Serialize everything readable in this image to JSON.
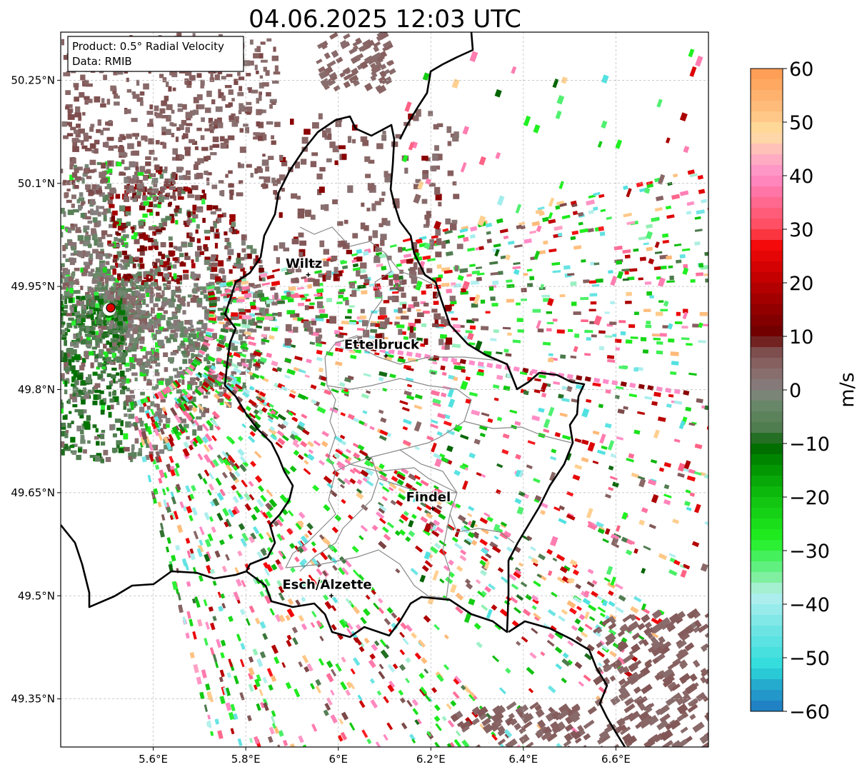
{
  "title": "04.06.2025 12:03 UTC",
  "info_box": {
    "product": "Product: 0.5° Radial Velocity",
    "data": "Data: RMIB"
  },
  "map": {
    "lon_range": [
      5.4,
      6.8
    ],
    "lat_range": [
      49.28,
      50.32
    ],
    "lon_ticks": [
      {
        "value": 5.6,
        "label": "5.6°E"
      },
      {
        "value": 5.8,
        "label": "5.8°E"
      },
      {
        "value": 6.0,
        "label": "6°E"
      },
      {
        "value": 6.2,
        "label": "6.2°E"
      },
      {
        "value": 6.4,
        "label": "6.4°E"
      },
      {
        "value": 6.6,
        "label": "6.6°E"
      }
    ],
    "lat_ticks": [
      {
        "value": 50.25,
        "label": "50.25°N"
      },
      {
        "value": 50.1,
        "label": "50.1°N"
      },
      {
        "value": 49.95,
        "label": "49.95°N"
      },
      {
        "value": 49.8,
        "label": "49.8°N"
      },
      {
        "value": 49.65,
        "label": "49.65°N"
      },
      {
        "value": 49.5,
        "label": "49.5°N"
      },
      {
        "value": 49.35,
        "label": "49.35°N"
      }
    ],
    "gridlines": true,
    "radar_site": {
      "lon": 5.505,
      "lat": 49.914
    },
    "cities": [
      {
        "name": "Wiltz",
        "lon": 5.935,
        "lat": 49.967
      },
      {
        "name": "Ettelbruck",
        "lon": 6.103,
        "lat": 49.849
      },
      {
        "name": "Findel",
        "lon": 6.204,
        "lat": 49.627
      },
      {
        "name": "Esch/Alzette",
        "lon": 5.985,
        "lat": 49.5
      }
    ]
  },
  "colorbar": {
    "label": "m/s",
    "range": [
      -60,
      60
    ],
    "tick_values": [
      60,
      50,
      40,
      30,
      20,
      10,
      0,
      -10,
      -20,
      -30,
      -40,
      -50,
      -60
    ],
    "tick_labels": [
      "60",
      "50",
      "40",
      "30",
      "20",
      "10",
      "0",
      "−10",
      "−20",
      "−30",
      "−40",
      "−50",
      "−60"
    ],
    "color_stops": [
      {
        "v": -60,
        "c": "#1f78c1"
      },
      {
        "v": -54,
        "c": "#26b5d0"
      },
      {
        "v": -52,
        "c": "#2ddcdc"
      },
      {
        "v": -45,
        "c": "#6de4e4"
      },
      {
        "v": -38,
        "c": "#b7f0f0"
      },
      {
        "v": -36,
        "c": "#90f0b0"
      },
      {
        "v": -32,
        "c": "#50f070"
      },
      {
        "v": -28,
        "c": "#20f020"
      },
      {
        "v": -20,
        "c": "#10c010"
      },
      {
        "v": -14,
        "c": "#009000"
      },
      {
        "v": -10,
        "c": "#006400"
      },
      {
        "v": -8,
        "c": "#4a7a4a"
      },
      {
        "v": -2,
        "c": "#6e8a6e"
      },
      {
        "v": 0,
        "c": "#857f80"
      },
      {
        "v": 4,
        "c": "#8a6868"
      },
      {
        "v": 8,
        "c": "#7a4444"
      },
      {
        "v": 10,
        "c": "#6b0000"
      },
      {
        "v": 16,
        "c": "#9a0000"
      },
      {
        "v": 22,
        "c": "#cc0000"
      },
      {
        "v": 27,
        "c": "#f40a0a"
      },
      {
        "v": 30,
        "c": "#ff4a5a"
      },
      {
        "v": 36,
        "c": "#ff6e9a"
      },
      {
        "v": 40,
        "c": "#ff8cc8"
      },
      {
        "v": 44,
        "c": "#ffb6c0"
      },
      {
        "v": 48,
        "c": "#ffe0a0"
      },
      {
        "v": 52,
        "c": "#ffc080"
      },
      {
        "v": 60,
        "c": "#ff9a50"
      }
    ]
  }
}
